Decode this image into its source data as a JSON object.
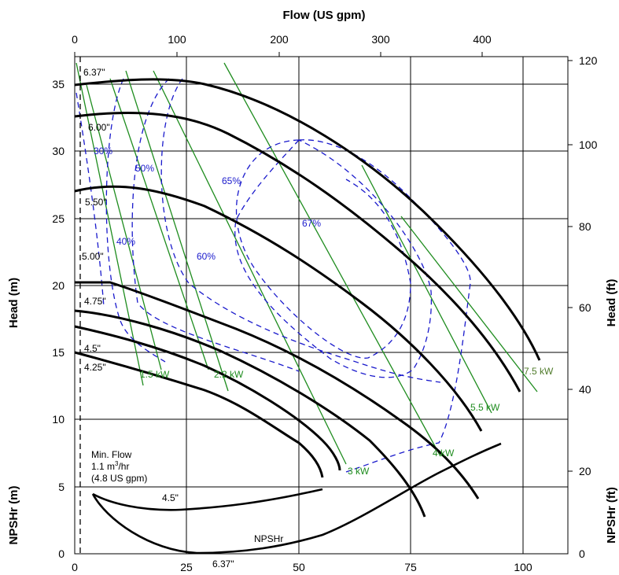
{
  "chart_data": {
    "type": "line",
    "axes": {
      "x_top": {
        "label": "Flow (US gpm)",
        "ticks": [
          0,
          100,
          200,
          300,
          400
        ]
      },
      "x_bottom": {
        "ticks": [
          0,
          25,
          50,
          75,
          100
        ],
        "range": [
          0,
          110
        ]
      },
      "y_left_head": {
        "label": "Head (m)",
        "ticks": [
          5,
          10,
          15,
          20,
          25,
          30,
          35
        ],
        "range": [
          5,
          37
        ]
      },
      "y_left_npsh": {
        "label": "NPSHr (m)",
        "ticks": [
          0,
          5
        ],
        "range": [
          0,
          5
        ]
      },
      "y_right_head": {
        "label": "Head (ft)",
        "ticks": [
          20,
          40,
          60,
          80,
          100,
          120
        ]
      },
      "y_right_npsh": {
        "label": "NPSHr (ft)",
        "ticks": [
          0
        ]
      }
    },
    "grid": true,
    "head_curves": [
      {
        "name": "6.37\"",
        "x": [
          0,
          10,
          20,
          30,
          40,
          50,
          60,
          70,
          80,
          90,
          100,
          104
        ],
        "y": [
          34.9,
          35.3,
          35.3,
          34.3,
          32.6,
          30.4,
          27.7,
          24.6,
          21.2,
          17.8,
          14.9,
          13.5
        ]
      },
      {
        "name": "6.00\"",
        "x": [
          0,
          10,
          20,
          30,
          40,
          50,
          60,
          70,
          80,
          90,
          100,
          103
        ],
        "y": [
          32.6,
          33.0,
          32.5,
          31.1,
          29.2,
          26.9,
          24.2,
          21.1,
          17.8,
          14.6,
          11.3,
          10.9
        ]
      },
      {
        "name": "5.50\"",
        "x": [
          0,
          10,
          20,
          30,
          40,
          50,
          60,
          70,
          80,
          90
        ],
        "y": [
          27.2,
          27.5,
          26.7,
          25.1,
          23.1,
          20.6,
          17.7,
          14.5,
          11.1,
          9.1
        ]
      },
      {
        "name": "5.00\"",
        "x": [
          0,
          8,
          10,
          20,
          30,
          40,
          50,
          60,
          70,
          80
        ],
        "y": [
          20.1,
          20.1,
          20.0,
          19.1,
          17.6,
          15.8,
          13.6,
          11.2,
          8.1,
          6.0
        ]
      },
      {
        "name": "4.75\"",
        "x": [
          0,
          10,
          20,
          30,
          40,
          50,
          60,
          70,
          75
        ],
        "y": [
          18.1,
          17.7,
          16.7,
          15.2,
          13.4,
          11.6,
          9.3,
          6.1,
          4.5
        ]
      },
      {
        "name": "4.5\"",
        "x": [
          0,
          10,
          20,
          30,
          40,
          50,
          55,
          60
        ],
        "y": [
          16.9,
          15.8,
          14.4,
          12.8,
          11.0,
          9.0,
          7.6,
          6.0
        ]
      },
      {
        "name": "4.25\"",
        "x": [
          0,
          10,
          20,
          30,
          40,
          45,
          50,
          55,
          56
        ],
        "y": [
          14.9,
          14.2,
          12.9,
          11.6,
          10.2,
          9.3,
          8.2,
          6.5,
          5.4
        ]
      }
    ],
    "efficiency_contours": [
      "30%",
      "40%",
      "50%",
      "60%",
      "65%",
      "67%"
    ],
    "power_lines": [
      "1.5 kW",
      "2.2 kW",
      "3 kW",
      "4 kW",
      "5.5 kW",
      "7.5 kW"
    ],
    "npshr_curves": [
      {
        "name": "4.5\"",
        "x": [
          4,
          10,
          20,
          30,
          40,
          50,
          55
        ],
        "y": [
          4.5,
          3.5,
          3.2,
          3.4,
          3.8,
          4.3,
          4.8
        ]
      },
      {
        "name": "6.37\"",
        "x": [
          4,
          10,
          20,
          30,
          40,
          50,
          60,
          70,
          80,
          90,
          95
        ],
        "y": [
          4.3,
          2.7,
          1.7,
          1.7,
          2.4,
          3.5,
          4.6,
          5.8,
          6.9,
          7.9,
          8.3
        ]
      }
    ],
    "min_flow": {
      "x": 1.1
    }
  },
  "labels": {
    "top_axis_title": "Flow (US gpm)",
    "left_head_title": "Head (m)",
    "left_npsh_title": "NPSHr (m)",
    "right_head_title": "Head (ft)",
    "right_npsh_title": "NPSHr (ft)",
    "imp_637": "6.37\"",
    "imp_600": "6.00\"",
    "imp_550": "5.50\"",
    "imp_500": "5.00\"",
    "imp_475": "4.75\"",
    "imp_45": "4.5\"",
    "imp_425": "4.25\"",
    "eff_30": "30%",
    "eff_40": "40%",
    "eff_50": "50%",
    "eff_60": "60%",
    "eff_65": "65%",
    "eff_67": "67%",
    "kw_15": "1.5 kW",
    "kw_22": "2.2 kW",
    "kw_3": "3 kW",
    "kw_4": "4 kW",
    "kw_55": "5.5 kW",
    "kw_75": "7.5 kW",
    "min_flow_1": "Min. Flow",
    "min_flow_2a": "1.1 m",
    "min_flow_2b": "3",
    "min_flow_2c": "/hr",
    "min_flow_3": "(4.8 US gpm)",
    "npsh_45": "4.5\"",
    "npsh_637": "6.37\"",
    "npshr_label": "NPSHr"
  },
  "colors": {
    "curve": "#000000",
    "efficiency": "#1a1acc",
    "power": "#1e8c1e",
    "power_label": "#4f7a2a",
    "grid": "#000000"
  }
}
